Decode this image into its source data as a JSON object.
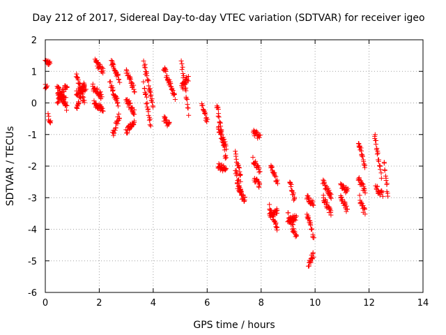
{
  "chart_data": {
    "type": "scatter",
    "title": "Day 212 of 2017, Sidereal Day-to-day VTEC variation (SDTVAR) for receiver igeo",
    "xlabel": "GPS time / hours",
    "ylabel": "SDTVAR / TECUs",
    "xlim": [
      0,
      14
    ],
    "ylim": [
      -6,
      2
    ],
    "xticks": [
      0,
      2,
      4,
      6,
      8,
      10,
      12,
      14
    ],
    "yticks": [
      -6,
      -5,
      -4,
      -3,
      -2,
      -1,
      0,
      1,
      2
    ],
    "xtick_labels": [
      "0",
      "2",
      "4",
      "6",
      "8",
      "10",
      "12",
      "14"
    ],
    "ytick_labels": [
      "-6",
      "-5",
      "-4",
      "-3",
      "-2",
      "-1",
      "0",
      "1",
      "2"
    ],
    "grid": true,
    "marker": "plus",
    "marker_color": "#ff0000",
    "series": [
      {
        "name": "SDTVAR",
        "arcs": [
          {
            "t0": 0.0,
            "t1": 0.06,
            "v0": 0.5,
            "v1": 0.45
          },
          {
            "t0": 0.0,
            "t1": 0.18,
            "v0": 1.3,
            "v1": 1.3
          },
          {
            "t0": 0.1,
            "t1": 0.2,
            "v0": -0.4,
            "v1": -0.7
          },
          {
            "t0": 0.45,
            "t1": 0.8,
            "v0": 0.0,
            "v1": 0.6
          },
          {
            "t0": 0.45,
            "t1": 0.75,
            "v0": 0.3,
            "v1": 0.1
          },
          {
            "t0": 0.45,
            "t1": 0.8,
            "v0": 0.5,
            "v1": -0.2
          },
          {
            "t0": 1.15,
            "t1": 1.45,
            "v0": 0.9,
            "v1": 0.0
          },
          {
            "t0": 1.15,
            "t1": 1.5,
            "v0": 0.3,
            "v1": 0.5
          },
          {
            "t0": 1.15,
            "t1": 1.45,
            "v0": -0.2,
            "v1": 0.6
          },
          {
            "t0": 1.85,
            "t1": 2.15,
            "v0": 1.3,
            "v1": 1.0
          },
          {
            "t0": 1.75,
            "t1": 2.1,
            "v0": 0.5,
            "v1": 0.2
          },
          {
            "t0": 1.8,
            "t1": 2.15,
            "v0": 0.0,
            "v1": -0.2
          },
          {
            "t0": 2.45,
            "t1": 2.75,
            "v0": 1.3,
            "v1": 0.7
          },
          {
            "t0": 2.5,
            "t1": 2.75,
            "v0": -1.0,
            "v1": -0.4
          },
          {
            "t0": 2.4,
            "t1": 2.7,
            "v0": 0.6,
            "v1": 0.0
          },
          {
            "t0": 3.0,
            "t1": 3.3,
            "v0": 1.0,
            "v1": 0.4
          },
          {
            "t0": 3.0,
            "t1": 3.3,
            "v0": -0.9,
            "v1": -0.6
          },
          {
            "t0": 3.0,
            "t1": 3.3,
            "v0": 0.1,
            "v1": -0.3
          },
          {
            "t0": 3.65,
            "t1": 4.0,
            "v0": 1.3,
            "v1": -0.1
          },
          {
            "t0": 3.65,
            "t1": 3.9,
            "v0": 0.6,
            "v1": -0.7
          },
          {
            "t0": 4.4,
            "t1": 4.6,
            "v0": -0.5,
            "v1": -0.7
          },
          {
            "t0": 4.4,
            "t1": 4.8,
            "v0": 1.1,
            "v1": 0.2
          },
          {
            "t0": 5.05,
            "t1": 5.3,
            "v0": 1.3,
            "v1": -0.3
          },
          {
            "t0": 5.05,
            "t1": 5.3,
            "v0": 0.5,
            "v1": 0.8
          },
          {
            "t0": 5.8,
            "t1": 6.0,
            "v0": 0.0,
            "v1": -0.6
          },
          {
            "t0": 6.35,
            "t1": 6.7,
            "v0": 0.0,
            "v1": -1.8
          },
          {
            "t0": 6.4,
            "t1": 6.7,
            "v0": -0.8,
            "v1": -1.4
          },
          {
            "t0": 6.4,
            "t1": 6.7,
            "v0": -2.0,
            "v1": -2.1
          },
          {
            "t0": 7.05,
            "t1": 7.25,
            "v0": -1.6,
            "v1": -2.4
          },
          {
            "t0": 7.05,
            "t1": 7.3,
            "v0": -2.1,
            "v1": -3.0
          },
          {
            "t0": 7.1,
            "t1": 7.4,
            "v0": -2.6,
            "v1": -3.1
          },
          {
            "t0": 7.7,
            "t1": 7.95,
            "v0": -1.8,
            "v1": -2.2
          },
          {
            "t0": 7.7,
            "t1": 7.95,
            "v0": -0.9,
            "v1": -1.1
          },
          {
            "t0": 7.75,
            "t1": 7.95,
            "v0": -2.4,
            "v1": -2.6
          },
          {
            "t0": 8.35,
            "t1": 8.6,
            "v0": -2.0,
            "v1": -2.5
          },
          {
            "t0": 8.3,
            "t1": 8.6,
            "v0": -3.3,
            "v1": -4.0
          },
          {
            "t0": 8.3,
            "t1": 8.6,
            "v0": -3.6,
            "v1": -3.4
          },
          {
            "t0": 9.05,
            "t1": 9.25,
            "v0": -2.5,
            "v1": -3.1
          },
          {
            "t0": 9.0,
            "t1": 9.3,
            "v0": -3.5,
            "v1": -4.3
          },
          {
            "t0": 9.0,
            "t1": 9.3,
            "v0": -3.8,
            "v1": -3.6
          },
          {
            "t0": 9.7,
            "t1": 9.95,
            "v0": -3.5,
            "v1": -4.2
          },
          {
            "t0": 9.75,
            "t1": 9.95,
            "v0": -5.1,
            "v1": -4.8
          },
          {
            "t0": 9.7,
            "t1": 9.95,
            "v0": -3.0,
            "v1": -3.2
          },
          {
            "t0": 10.3,
            "t1": 10.6,
            "v0": -2.5,
            "v1": -3.0
          },
          {
            "t0": 10.3,
            "t1": 10.6,
            "v0": -3.0,
            "v1": -3.5
          },
          {
            "t0": 10.95,
            "t1": 11.2,
            "v0": -2.6,
            "v1": -2.8
          },
          {
            "t0": 10.95,
            "t1": 11.2,
            "v0": -3.0,
            "v1": -3.4
          },
          {
            "t0": 11.6,
            "t1": 11.85,
            "v0": -1.2,
            "v1": -2.0
          },
          {
            "t0": 11.6,
            "t1": 11.85,
            "v0": -2.4,
            "v1": -2.8
          },
          {
            "t0": 11.65,
            "t1": 11.85,
            "v0": -3.0,
            "v1": -3.5
          },
          {
            "t0": 12.2,
            "t1": 12.45,
            "v0": -1.0,
            "v1": -2.3
          },
          {
            "t0": 12.25,
            "t1": 12.5,
            "v0": -2.7,
            "v1": -2.9
          },
          {
            "t0": 12.55,
            "t1": 12.7,
            "v0": -1.9,
            "v1": -2.9
          }
        ]
      }
    ]
  }
}
